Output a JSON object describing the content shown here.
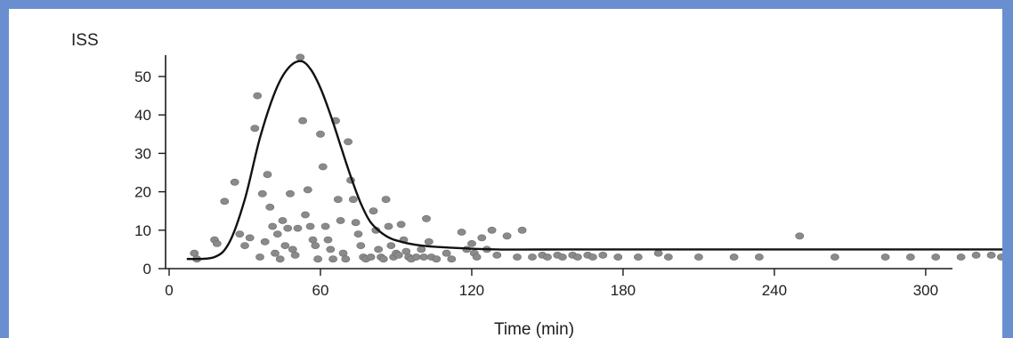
{
  "chart_data": {
    "type": "scatter",
    "ylabel": "ISS",
    "xlabel": "Time (min)",
    "x_ticks": [
      0,
      60,
      120,
      180,
      240,
      300
    ],
    "y_ticks": [
      0,
      10,
      20,
      30,
      40,
      50
    ],
    "xlim": [
      0,
      330
    ],
    "ylim": [
      0,
      55
    ],
    "grid": false,
    "colors": {
      "points": "#8a8a8a",
      "curve": "#111111",
      "frame": "#6a8fd0"
    },
    "points": [
      [
        10,
        4
      ],
      [
        11,
        2.5
      ],
      [
        18,
        7.5
      ],
      [
        19,
        6.5
      ],
      [
        22,
        17.5
      ],
      [
        26,
        22.5
      ],
      [
        28,
        9
      ],
      [
        30,
        6
      ],
      [
        32,
        8
      ],
      [
        34,
        36.5
      ],
      [
        35,
        45
      ],
      [
        36,
        3
      ],
      [
        37,
        19.5
      ],
      [
        38,
        7
      ],
      [
        39,
        24.5
      ],
      [
        40,
        16
      ],
      [
        41,
        11
      ],
      [
        42,
        4
      ],
      [
        43,
        9
      ],
      [
        44,
        2.5
      ],
      [
        45,
        12.5
      ],
      [
        46,
        6
      ],
      [
        47,
        10.5
      ],
      [
        48,
        19.5
      ],
      [
        49,
        5
      ],
      [
        50,
        3.5
      ],
      [
        51,
        10.5
      ],
      [
        52,
        55
      ],
      [
        53,
        38.5
      ],
      [
        54,
        14
      ],
      [
        55,
        20.5
      ],
      [
        56,
        11
      ],
      [
        57,
        7.5
      ],
      [
        58,
        6
      ],
      [
        59,
        2.5
      ],
      [
        60,
        35
      ],
      [
        61,
        26.5
      ],
      [
        62,
        11
      ],
      [
        63,
        7.5
      ],
      [
        64,
        5
      ],
      [
        65,
        2.5
      ],
      [
        66,
        38.5
      ],
      [
        67,
        18
      ],
      [
        68,
        12.5
      ],
      [
        69,
        4
      ],
      [
        70,
        2.5
      ],
      [
        71,
        33
      ],
      [
        72,
        23
      ],
      [
        73,
        18
      ],
      [
        74,
        12
      ],
      [
        75,
        9
      ],
      [
        76,
        6
      ],
      [
        77,
        3
      ],
      [
        78,
        2.5
      ],
      [
        80,
        3
      ],
      [
        81,
        15
      ],
      [
        82,
        10
      ],
      [
        83,
        5
      ],
      [
        84,
        3
      ],
      [
        85,
        2.5
      ],
      [
        86,
        18
      ],
      [
        87,
        11
      ],
      [
        88,
        6
      ],
      [
        89,
        3
      ],
      [
        90,
        4
      ],
      [
        91,
        3.5
      ],
      [
        92,
        11.5
      ],
      [
        93,
        7.5
      ],
      [
        94,
        4.5
      ],
      [
        95,
        3
      ],
      [
        96,
        2.5
      ],
      [
        98,
        3
      ],
      [
        100,
        5
      ],
      [
        101,
        3
      ],
      [
        102,
        13
      ],
      [
        103,
        7
      ],
      [
        104,
        3
      ],
      [
        106,
        2.5
      ],
      [
        110,
        4
      ],
      [
        112,
        2.5
      ],
      [
        116,
        9.5
      ],
      [
        118,
        5
      ],
      [
        120,
        6.5
      ],
      [
        121,
        4
      ],
      [
        122,
        3
      ],
      [
        124,
        8
      ],
      [
        126,
        5
      ],
      [
        128,
        10
      ],
      [
        130,
        3.5
      ],
      [
        134,
        8.5
      ],
      [
        138,
        3
      ],
      [
        140,
        10
      ],
      [
        144,
        3
      ],
      [
        148,
        3.5
      ],
      [
        150,
        3
      ],
      [
        154,
        3.5
      ],
      [
        156,
        3
      ],
      [
        160,
        3.5
      ],
      [
        162,
        3
      ],
      [
        166,
        3.5
      ],
      [
        168,
        3
      ],
      [
        172,
        3.5
      ],
      [
        178,
        3
      ],
      [
        186,
        3
      ],
      [
        194,
        4
      ],
      [
        198,
        3
      ],
      [
        210,
        3
      ],
      [
        224,
        3
      ],
      [
        234,
        3
      ],
      [
        250,
        8.5
      ],
      [
        264,
        3
      ],
      [
        284,
        3
      ],
      [
        294,
        3
      ],
      [
        304,
        3
      ],
      [
        314,
        3
      ],
      [
        320,
        3.5
      ],
      [
        326,
        3.5
      ],
      [
        330,
        3
      ]
    ],
    "curve": [
      [
        7,
        2.5
      ],
      [
        18,
        3
      ],
      [
        24,
        7
      ],
      [
        30,
        18
      ],
      [
        36,
        34
      ],
      [
        42,
        46
      ],
      [
        47,
        52
      ],
      [
        52,
        54
      ],
      [
        56,
        52
      ],
      [
        60,
        47
      ],
      [
        64,
        40
      ],
      [
        68,
        32
      ],
      [
        72,
        24
      ],
      [
        76,
        17
      ],
      [
        80,
        12
      ],
      [
        86,
        8.5
      ],
      [
        92,
        7
      ],
      [
        100,
        6
      ],
      [
        110,
        5.5
      ],
      [
        130,
        5
      ],
      [
        160,
        5
      ],
      [
        200,
        5
      ],
      [
        250,
        5
      ],
      [
        300,
        5
      ],
      [
        335,
        5
      ]
    ]
  }
}
